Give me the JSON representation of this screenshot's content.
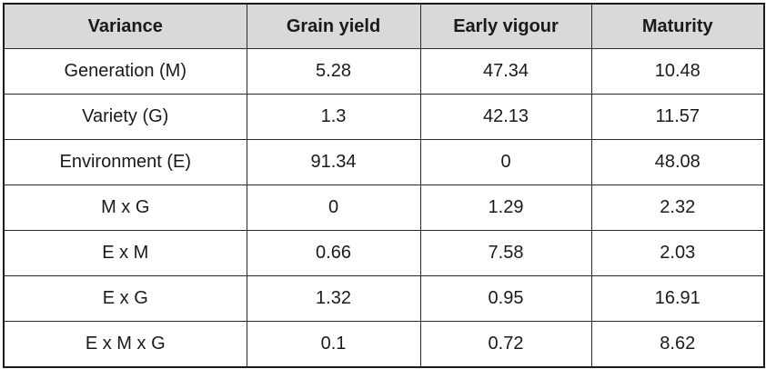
{
  "table": {
    "headers": [
      "Variance",
      "Grain yield",
      "Early vigour",
      "Maturity"
    ],
    "rows": [
      [
        "Generation (M)",
        "5.28",
        "47.34",
        "10.48"
      ],
      [
        "Variety (G)",
        "1.3",
        "42.13",
        "11.57"
      ],
      [
        "Environment (E)",
        "91.34",
        "0",
        "48.08"
      ],
      [
        "M x G",
        "0",
        "1.29",
        "2.32"
      ],
      [
        "E x M",
        "0.66",
        "7.58",
        "2.03"
      ],
      [
        "E x G",
        "1.32",
        "0.95",
        "16.91"
      ],
      [
        "E x M x G",
        "0.1",
        "0.72",
        "8.62"
      ]
    ]
  }
}
